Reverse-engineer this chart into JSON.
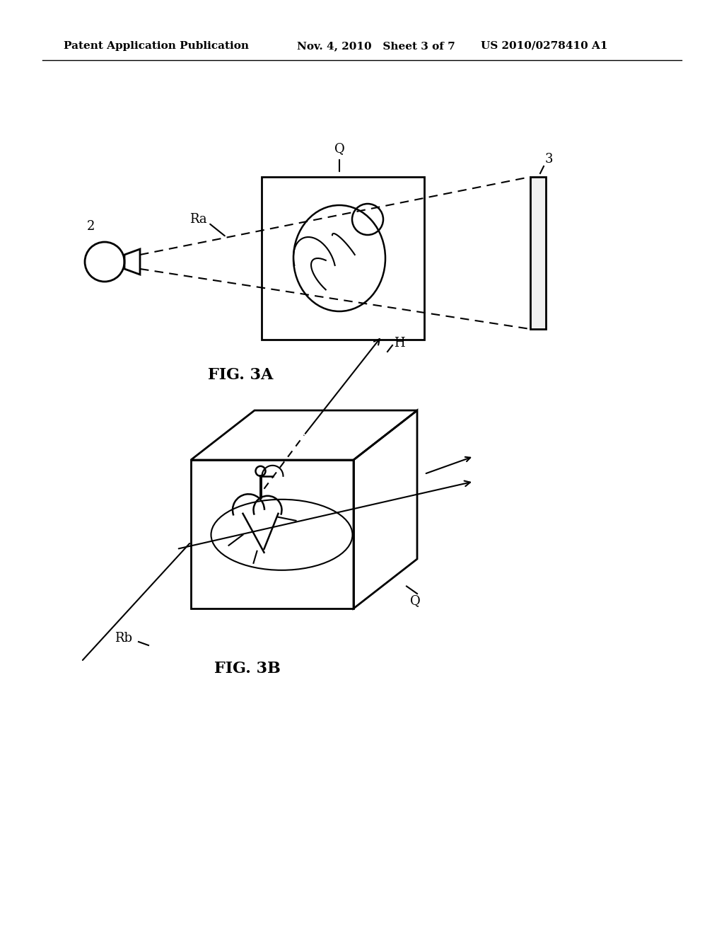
{
  "bg_color": "#ffffff",
  "line_color": "#000000",
  "header_left": "Patent Application Publication",
  "header_mid": "Nov. 4, 2010   Sheet 3 of 7",
  "header_right": "US 2010/0278410 A1",
  "fig3a_label": "FIG. 3A",
  "fig3b_label": "FIG. 3B",
  "label_2": "2",
  "label_Ra": "Ra",
  "label_Q_top": "Q",
  "label_3": "3",
  "label_Rb": "Rb",
  "label_H": "H",
  "label_Q_bottom": "Q"
}
